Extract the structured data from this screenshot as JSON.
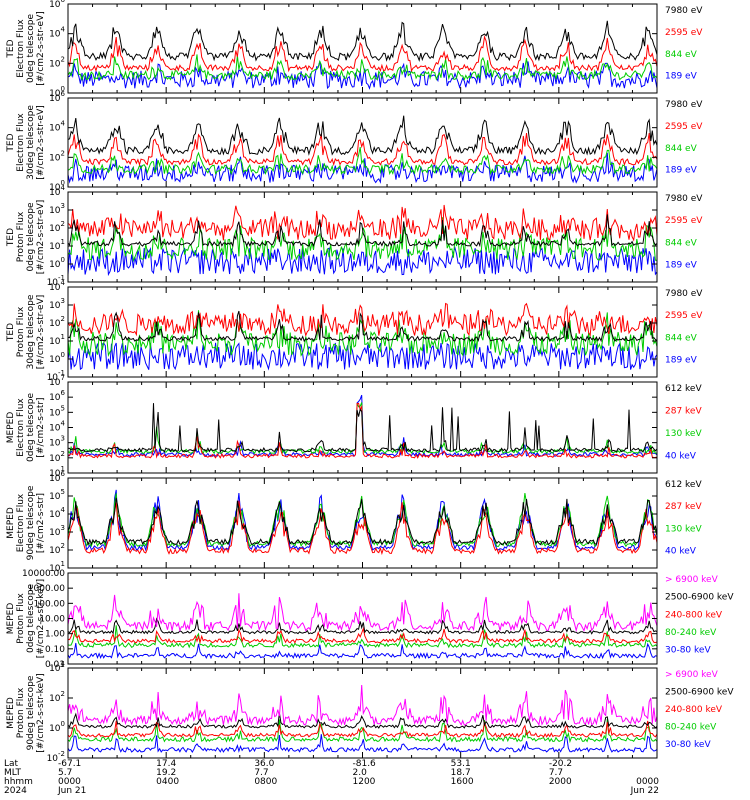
{
  "colors": {
    "blue": "#0000ff",
    "red": "#ff0000",
    "green": "#00cc00",
    "black": "#000000",
    "magenta": "#ff00ff"
  },
  "footer": {
    "row_labels": [
      "Lat",
      "MLT",
      "hhmm",
      "2024"
    ],
    "ticks": [
      {
        "lat": "-67.1",
        "mlt": "5.7",
        "hhmm": "0000",
        "date": "Jun 21"
      },
      {
        "lat": "17.4",
        "mlt": "19.2",
        "hhmm": "0400",
        "date": ""
      },
      {
        "lat": "36.0",
        "mlt": "7.7",
        "hhmm": "0800",
        "date": ""
      },
      {
        "lat": "-81.6",
        "mlt": "2.0",
        "hhmm": "1200",
        "date": ""
      },
      {
        "lat": "53.1",
        "mlt": "18.7",
        "hhmm": "1600",
        "date": ""
      },
      {
        "lat": "-20.2",
        "mlt": "7.7",
        "hhmm": "2000",
        "date": ""
      },
      {
        "lat": "",
        "mlt": "",
        "hhmm": "0000",
        "date": "Jun 22"
      }
    ]
  },
  "chart_data": [
    {
      "type": "line",
      "ylabel": [
        "TED",
        "Electron Flux",
        "0deg telescope",
        "[#/cm2-s-str-eV]"
      ],
      "log_y": true,
      "ylim_exp": [
        0,
        6
      ],
      "yticks": [
        {
          "base": "10",
          "exp": "0"
        },
        {
          "base": "10",
          "exp": "2"
        },
        {
          "base": "10",
          "exp": "4"
        },
        {
          "base": "10",
          "exp": "6"
        }
      ],
      "series": [
        {
          "name": "7980 eV",
          "color": "#000000"
        },
        {
          "name": "2595 eV",
          "color": "#ff0000"
        },
        {
          "name": "844 eV",
          "color": "#00cc00"
        },
        {
          "name": "189 eV",
          "color": "#0000ff"
        }
      ],
      "profile": "ted_e"
    },
    {
      "type": "line",
      "ylabel": [
        "TED",
        "Electron Flux",
        "30deg telescope",
        "[#/cm2-s-str-eV]"
      ],
      "log_y": true,
      "ylim_exp": [
        0,
        6
      ],
      "yticks": [
        {
          "base": "10",
          "exp": "0"
        },
        {
          "base": "10",
          "exp": "2"
        },
        {
          "base": "10",
          "exp": "4"
        },
        {
          "base": "10",
          "exp": "6"
        }
      ],
      "series": [
        {
          "name": "7980 eV",
          "color": "#000000"
        },
        {
          "name": "2595 eV",
          "color": "#ff0000"
        },
        {
          "name": "844 eV",
          "color": "#00cc00"
        },
        {
          "name": "189 eV",
          "color": "#0000ff"
        }
      ],
      "profile": "ted_e"
    },
    {
      "type": "line",
      "ylabel": [
        "TED",
        "Proton Flux",
        "0deg telescope",
        "[#/cm2-s-str-eV]"
      ],
      "log_y": true,
      "ylim_exp": [
        -1,
        4
      ],
      "yticks": [
        {
          "base": "10",
          "exp": "-1"
        },
        {
          "base": "10",
          "exp": "0"
        },
        {
          "base": "10",
          "exp": "1"
        },
        {
          "base": "10",
          "exp": "2"
        },
        {
          "base": "10",
          "exp": "3"
        },
        {
          "base": "10",
          "exp": "4"
        }
      ],
      "series": [
        {
          "name": "7980 eV",
          "color": "#000000"
        },
        {
          "name": "2595 eV",
          "color": "#ff0000"
        },
        {
          "name": "844 eV",
          "color": "#00cc00"
        },
        {
          "name": "189 eV",
          "color": "#0000ff"
        }
      ],
      "profile": "ted_p"
    },
    {
      "type": "line",
      "ylabel": [
        "TED",
        "Proton Flux",
        "30deg telescope",
        "[#/cm2-s-str-eV]"
      ],
      "log_y": true,
      "ylim_exp": [
        -1,
        4
      ],
      "yticks": [
        {
          "base": "10",
          "exp": "-1"
        },
        {
          "base": "10",
          "exp": "0"
        },
        {
          "base": "10",
          "exp": "1"
        },
        {
          "base": "10",
          "exp": "2"
        },
        {
          "base": "10",
          "exp": "3"
        },
        {
          "base": "10",
          "exp": "4"
        }
      ],
      "series": [
        {
          "name": "7980 eV",
          "color": "#000000"
        },
        {
          "name": "2595 eV",
          "color": "#ff0000"
        },
        {
          "name": "844 eV",
          "color": "#00cc00"
        },
        {
          "name": "189 eV",
          "color": "#0000ff"
        }
      ],
      "profile": "ted_p"
    },
    {
      "type": "line",
      "ylabel": [
        "MEPED",
        "Electron Flux",
        "0deg telescope",
        "[#/cm2-s-str]"
      ],
      "log_y": true,
      "ylim_exp": [
        1,
        7
      ],
      "yticks": [
        {
          "base": "10",
          "exp": "1"
        },
        {
          "base": "10",
          "exp": "2"
        },
        {
          "base": "10",
          "exp": "3"
        },
        {
          "base": "10",
          "exp": "4"
        },
        {
          "base": "10",
          "exp": "5"
        },
        {
          "base": "10",
          "exp": "6"
        },
        {
          "base": "10",
          "exp": "7"
        }
      ],
      "series": [
        {
          "name": "612 keV",
          "color": "#000000"
        },
        {
          "name": "287 keV",
          "color": "#ff0000"
        },
        {
          "name": "130 keV",
          "color": "#00cc00"
        },
        {
          "name": "40 keV",
          "color": "#0000ff"
        }
      ],
      "profile": "med_e0"
    },
    {
      "type": "line",
      "ylabel": [
        "MEPED",
        "Electron Flux",
        "90deg telescope",
        "[#/cm2-s-str]"
      ],
      "log_y": true,
      "ylim_exp": [
        1,
        6
      ],
      "yticks": [
        {
          "base": "10",
          "exp": "1"
        },
        {
          "base": "10",
          "exp": "2"
        },
        {
          "base": "10",
          "exp": "3"
        },
        {
          "base": "10",
          "exp": "4"
        },
        {
          "base": "10",
          "exp": "5"
        },
        {
          "base": "10",
          "exp": "6"
        }
      ],
      "series": [
        {
          "name": "612 keV",
          "color": "#000000"
        },
        {
          "name": "287 keV",
          "color": "#ff0000"
        },
        {
          "name": "130 keV",
          "color": "#00cc00"
        },
        {
          "name": "40 keV",
          "color": "#0000ff"
        }
      ],
      "profile": "med_e90"
    },
    {
      "type": "line",
      "ylabel": [
        "MEPED",
        "Proton Flux",
        "0deg telescope",
        "[#/cm2-s-str-keV]"
      ],
      "log_y": true,
      "ylim_exp": [
        -2,
        4
      ],
      "yticks": [
        {
          "text": "0.01"
        },
        {
          "text": "0.10"
        },
        {
          "text": "1.00"
        },
        {
          "text": "10.00"
        },
        {
          "text": "100.00"
        },
        {
          "text": "1000.00"
        },
        {
          "text": "10000.00"
        }
      ],
      "series": [
        {
          "name": "> 6900 keV",
          "color": "#ff00ff"
        },
        {
          "name": "2500-6900 keV",
          "color": "#000000"
        },
        {
          "name": "240-800 keV",
          "color": "#ff0000"
        },
        {
          "name": "80-240 keV",
          "color": "#00cc00"
        },
        {
          "name": "30-80 keV",
          "color": "#0000ff"
        }
      ],
      "profile": "med_p"
    },
    {
      "type": "line",
      "ylabel": [
        "MEPED",
        "Proton Flux",
        "90deg telescope",
        "[#/cm2-s-str-keV]"
      ],
      "log_y": true,
      "ylim_exp": [
        -2,
        4
      ],
      "yticks": [
        {
          "base": "10",
          "exp": "-2"
        },
        {
          "base": "10",
          "exp": "0"
        },
        {
          "base": "10",
          "exp": "2"
        },
        {
          "base": "10",
          "exp": "4"
        }
      ],
      "series": [
        {
          "name": "> 6900 keV",
          "color": "#ff00ff"
        },
        {
          "name": "2500-6900 keV",
          "color": "#000000"
        },
        {
          "name": "240-800 keV",
          "color": "#ff0000"
        },
        {
          "name": "80-240 keV",
          "color": "#00cc00"
        },
        {
          "name": "30-80 keV",
          "color": "#0000ff"
        }
      ],
      "profile": "med_p"
    }
  ]
}
